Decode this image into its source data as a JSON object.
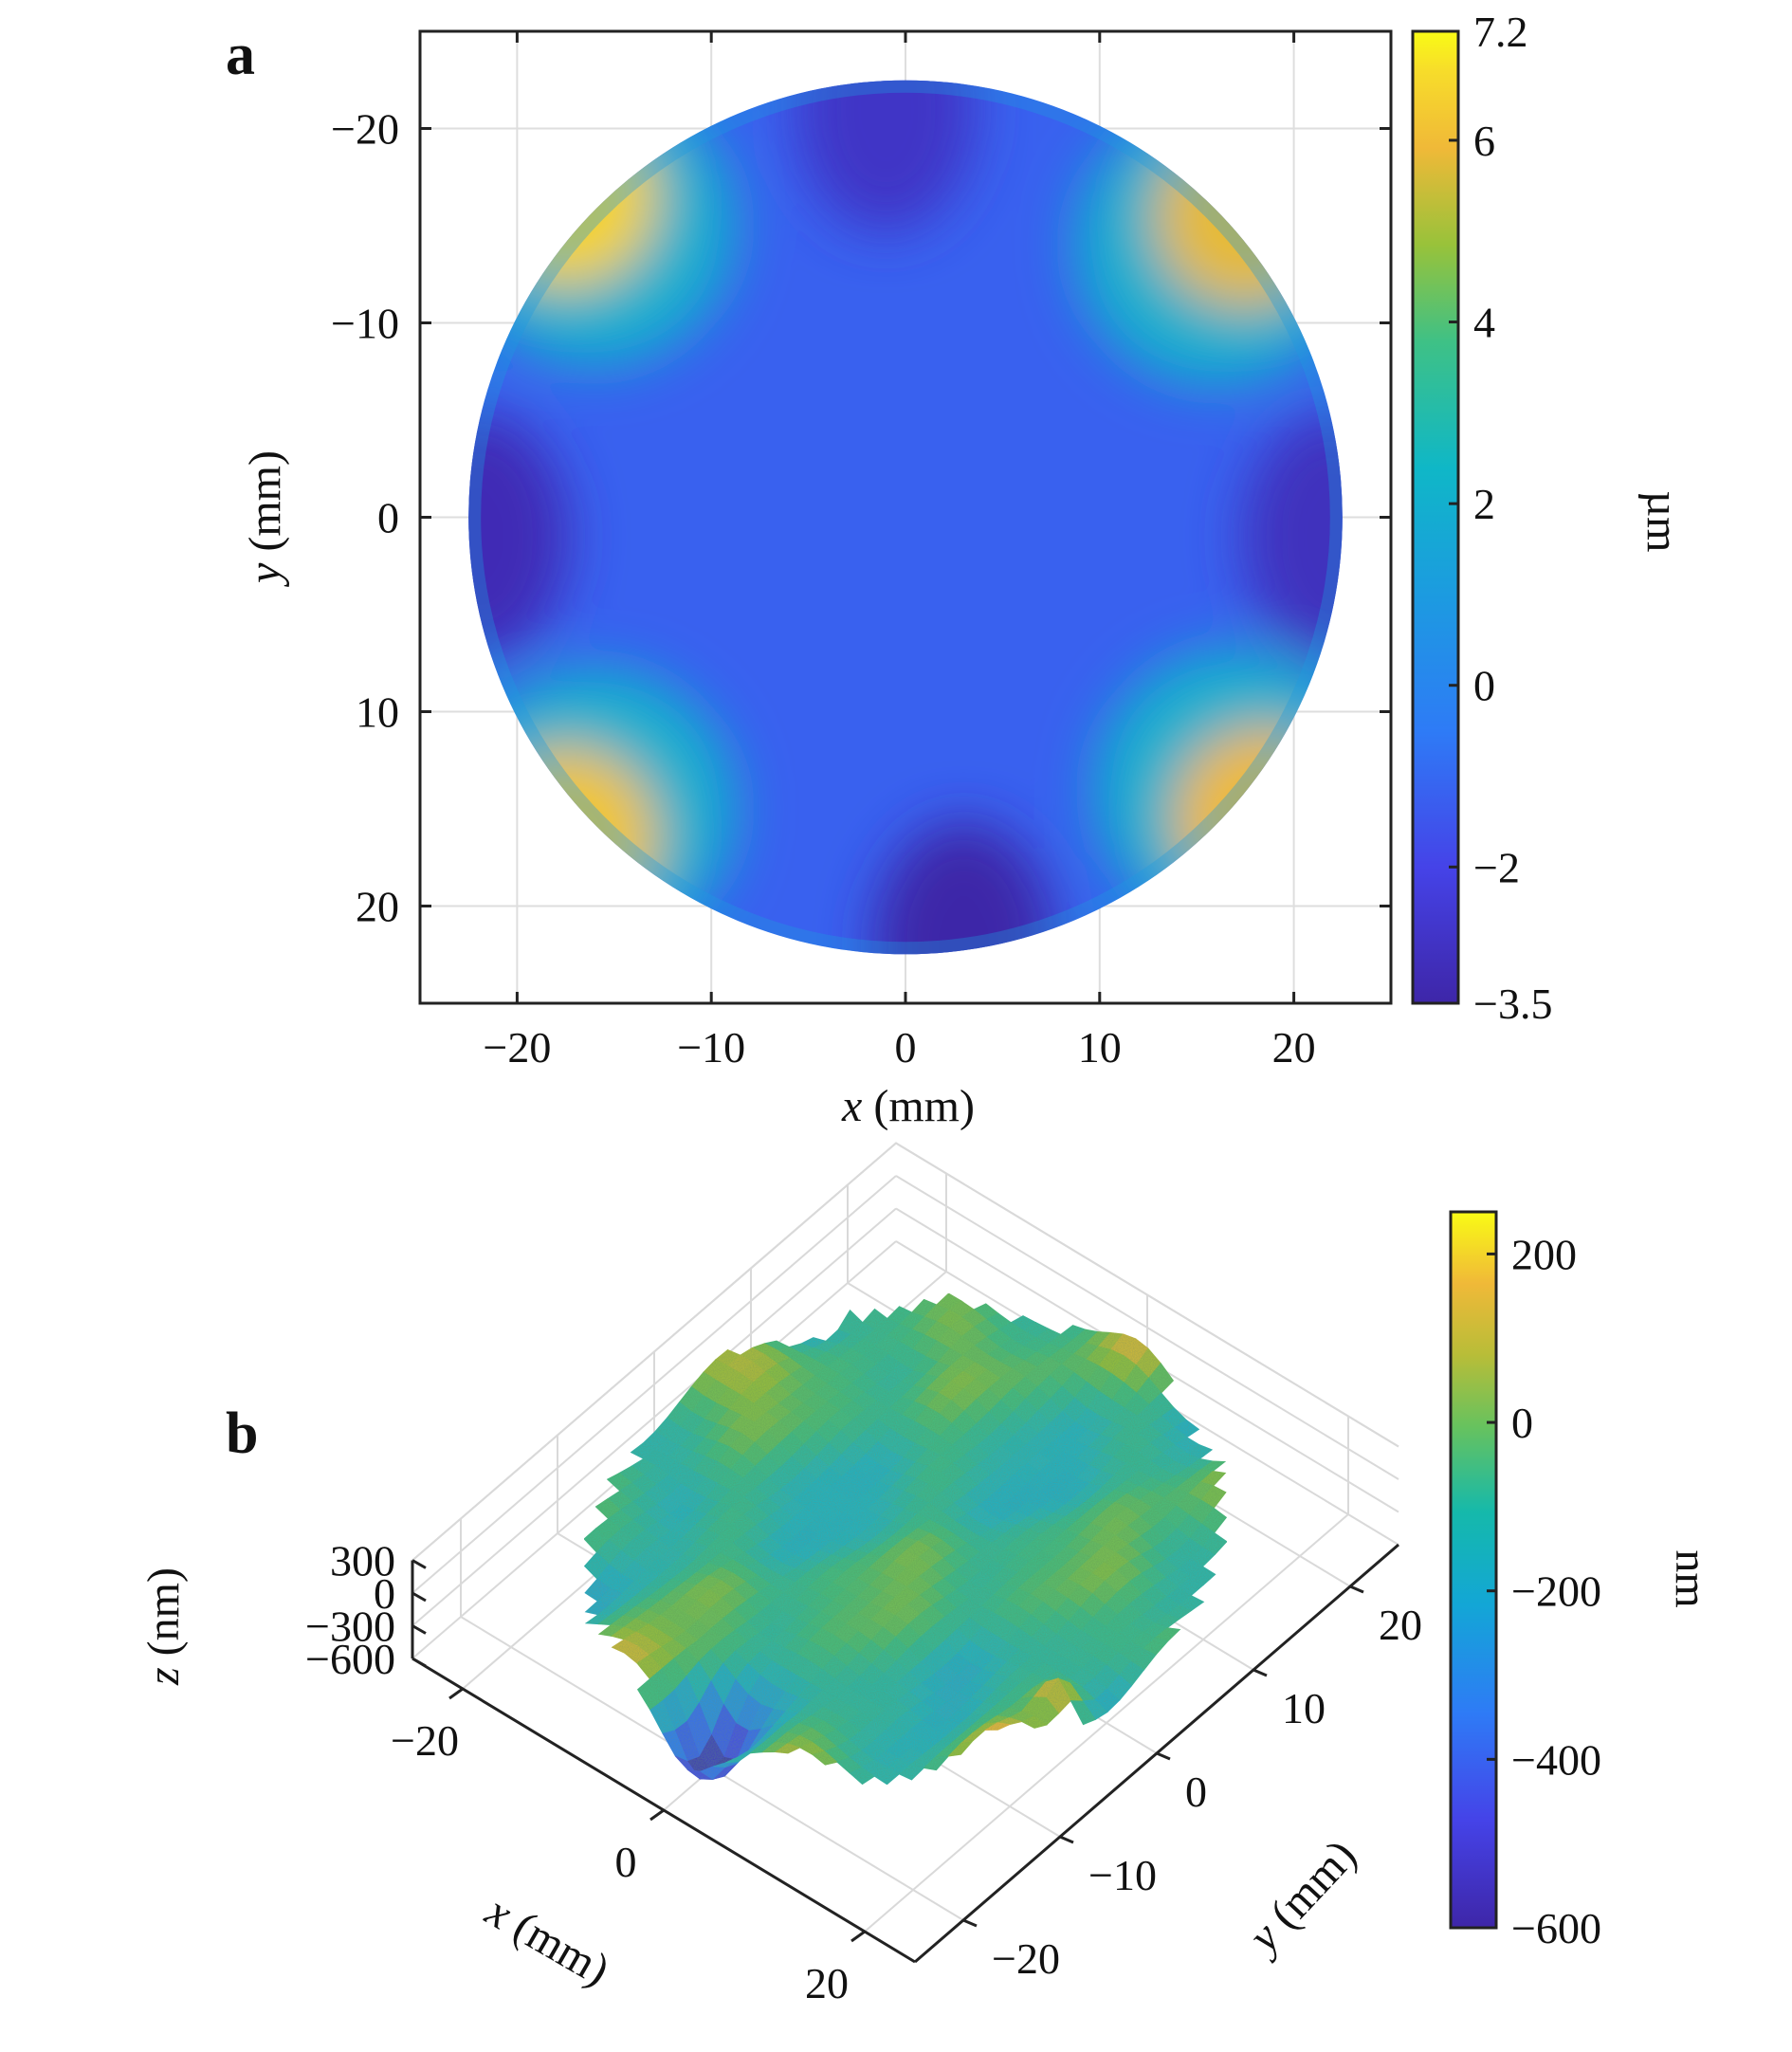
{
  "panel_a": {
    "letter": "a"
  },
  "panel_b": {
    "letter": "b"
  },
  "chart_data": [
    {
      "type": "heatmap",
      "description_id": "panel-a-surface-map",
      "xlabel_var": "x",
      "xlabel_unit": "(mm)",
      "ylabel_var": "y",
      "ylabel_unit": "(mm)",
      "xlim": [
        -25,
        25
      ],
      "ylim": [
        -25,
        25
      ],
      "y_reversed": true,
      "x_ticks": [
        -20,
        -10,
        0,
        10,
        20
      ],
      "x_tick_labels": [
        "−20",
        "−10",
        "0",
        "10",
        "20"
      ],
      "y_ticks": [
        -20,
        -10,
        0,
        10,
        20
      ],
      "y_tick_labels": [
        "−20",
        "−10",
        "0",
        "10",
        "20"
      ],
      "grid": true,
      "aperture_radius_mm": 22.5,
      "colorbar": {
        "unit": "µm",
        "range": [
          -3.5,
          7.2
        ],
        "ticks": [
          -3.5,
          -2,
          0,
          2,
          4,
          6,
          7.2
        ],
        "tick_labels": [
          "−3.5",
          "−2",
          "0",
          "2",
          "4",
          "6",
          "7.2"
        ],
        "colormap": "parula"
      },
      "features": [
        {
          "kind": "peak",
          "x": -16,
          "y": -15,
          "value": 6.5
        },
        {
          "kind": "peak",
          "x": 16,
          "y": -14,
          "value": 5.8
        },
        {
          "kind": "peak",
          "x": -16,
          "y": 15,
          "value": 6.2
        },
        {
          "kind": "peak",
          "x": 17,
          "y": 14,
          "value": 5.9
        },
        {
          "kind": "valley",
          "x": -22,
          "y": 1,
          "value": -3.2
        },
        {
          "kind": "valley",
          "x": 22,
          "y": 1,
          "value": -3.0
        },
        {
          "kind": "valley",
          "x": -1,
          "y": -21,
          "value": -2.8
        },
        {
          "kind": "valley",
          "x": 3,
          "y": 22,
          "value": -3.5
        }
      ],
      "background_value": -1.2
    },
    {
      "type": "surface3d",
      "description_id": "panel-b-residual-surface",
      "xlabel_var": "x",
      "xlabel_unit": "(mm)",
      "ylabel_var": "y",
      "ylabel_unit": "(mm)",
      "zlabel_var": "z",
      "zlabel_unit": "(nm)",
      "x_ticks": [
        -20,
        0,
        20
      ],
      "x_tick_labels": [
        "−20",
        "0",
        "20"
      ],
      "y_ticks": [
        -20,
        -10,
        0,
        10,
        20
      ],
      "y_tick_labels": [
        "−20",
        "−10",
        "0",
        "10",
        "20"
      ],
      "z_ticks": [
        300,
        0,
        -300,
        -600
      ],
      "z_tick_labels": [
        "300",
        "0",
        "−300",
        "−600"
      ],
      "zlim": [
        -600,
        300
      ],
      "grid": true,
      "colorbar": {
        "unit": "nm",
        "range": [
          -600,
          250
        ],
        "ticks": [
          200,
          0,
          -200,
          -400,
          -600
        ],
        "tick_labels": [
          "200",
          "0",
          "−200",
          "−400",
          "−600"
        ],
        "colormap": "parula"
      },
      "features": [
        {
          "kind": "deep-dip",
          "x": 0,
          "y": -20,
          "value": -600
        },
        {
          "kind": "edge-spike",
          "x": 20,
          "y": -5,
          "value": 250
        },
        {
          "kind": "edge-spike",
          "x": -20,
          "y": 15,
          "value": 200
        }
      ]
    }
  ]
}
